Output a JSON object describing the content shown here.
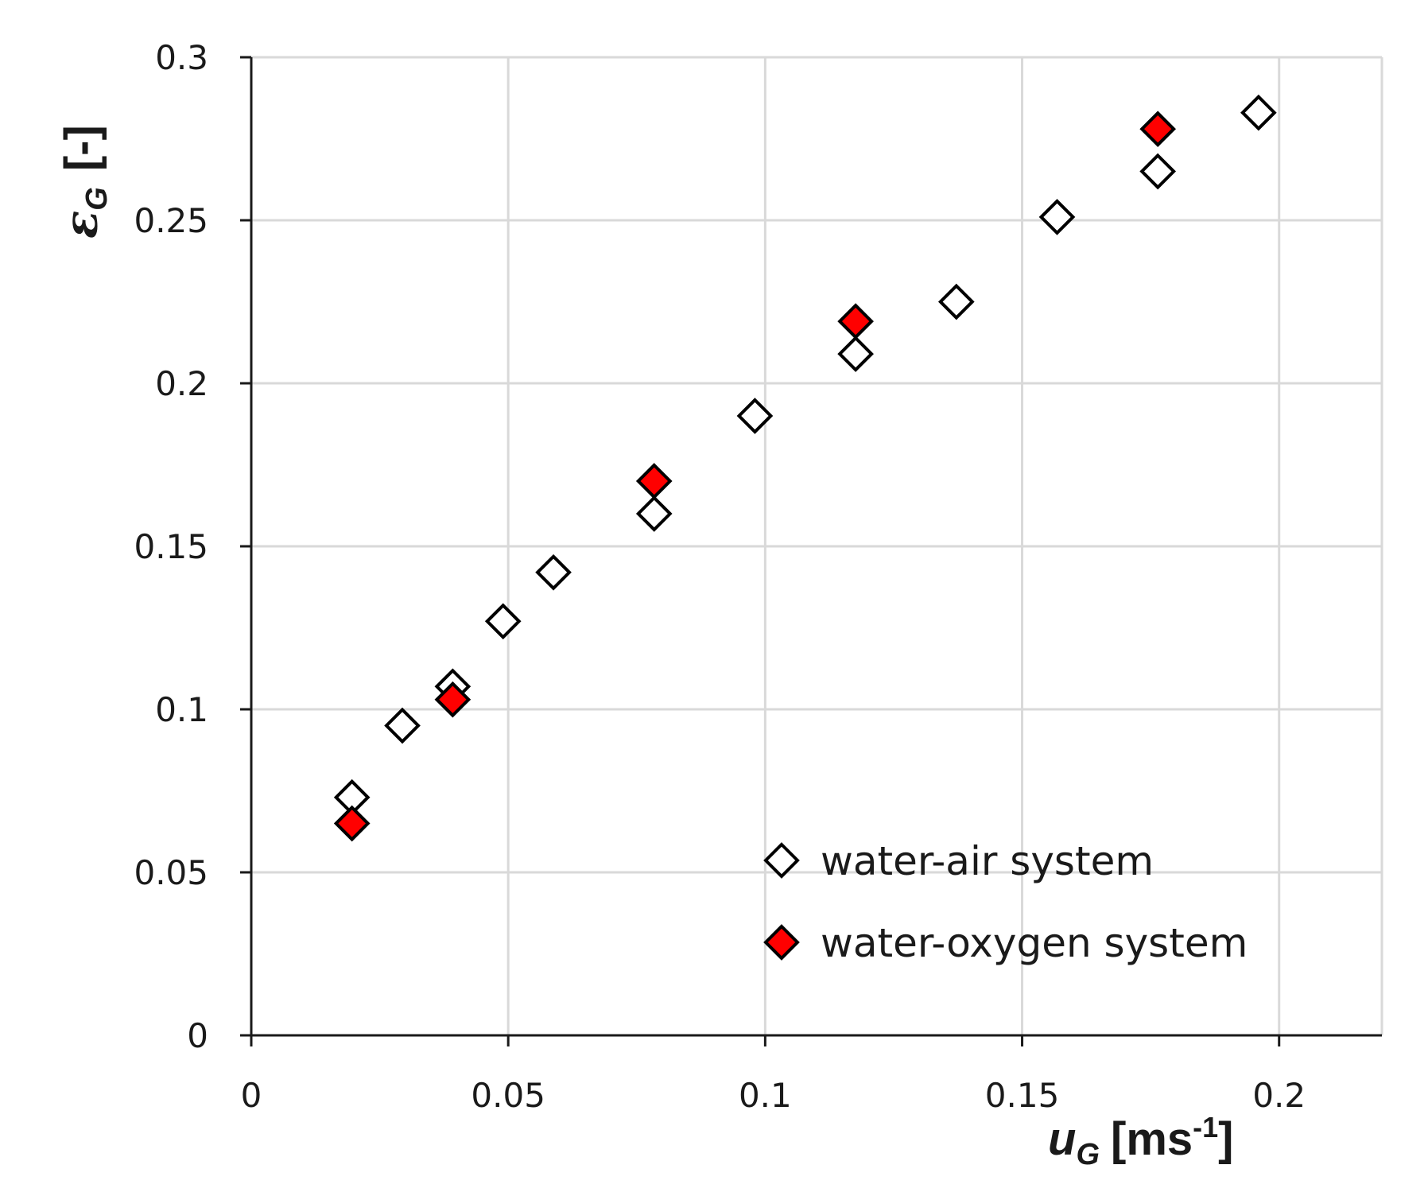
{
  "chart_data": {
    "type": "scatter",
    "title": "",
    "xlabel": {
      "symbol": "u",
      "subscript": "G",
      "unit_prefix": "[ms",
      "unit_exponent": "-1",
      "unit_suffix": "]"
    },
    "ylabel": {
      "symbol": "ε",
      "subscript": "G",
      "unit": "[-]"
    },
    "xlim": [
      0,
      0.22
    ],
    "ylim": [
      0,
      0.3
    ],
    "xticks": [
      0,
      0.05,
      0.1,
      0.15,
      0.2
    ],
    "xtick_labels": [
      "0",
      "0.05",
      "0.1",
      "0.15",
      "0.2"
    ],
    "yticks": [
      0,
      0.05,
      0.1,
      0.15,
      0.2,
      0.25,
      0.3
    ],
    "ytick_labels": [
      "0",
      "0.05",
      "0.1",
      "0.15",
      "0.2",
      "0.25",
      "0.3"
    ],
    "grid": true,
    "legend_position": "bottom-right",
    "series": [
      {
        "name": "water-air system",
        "marker": "diamond-open",
        "color": "#ffffff",
        "edge_color": "#000000",
        "points": [
          {
            "x": 0.0196,
            "y": 0.073
          },
          {
            "x": 0.0294,
            "y": 0.095
          },
          {
            "x": 0.0392,
            "y": 0.107
          },
          {
            "x": 0.049,
            "y": 0.127
          },
          {
            "x": 0.0588,
            "y": 0.142
          },
          {
            "x": 0.0784,
            "y": 0.16
          },
          {
            "x": 0.098,
            "y": 0.19
          },
          {
            "x": 0.1176,
            "y": 0.209
          },
          {
            "x": 0.1372,
            "y": 0.225
          },
          {
            "x": 0.1568,
            "y": 0.251
          },
          {
            "x": 0.1764,
            "y": 0.265
          },
          {
            "x": 0.196,
            "y": 0.283
          }
        ]
      },
      {
        "name": "water-oxygen system",
        "marker": "diamond-filled",
        "color": "#ff0000",
        "edge_color": "#000000",
        "points": [
          {
            "x": 0.0196,
            "y": 0.065
          },
          {
            "x": 0.0392,
            "y": 0.103
          },
          {
            "x": 0.0784,
            "y": 0.17
          },
          {
            "x": 0.1176,
            "y": 0.219
          },
          {
            "x": 0.1764,
            "y": 0.278
          }
        ]
      }
    ]
  }
}
